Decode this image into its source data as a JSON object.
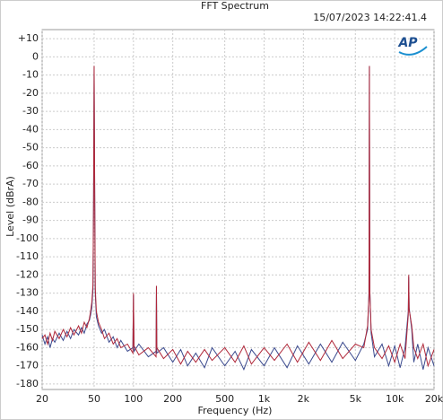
{
  "chart_data": {
    "type": "line",
    "title": "FFT Spectrum",
    "timestamp": "15/07/2023 14:22:41.4",
    "logo": "AP",
    "x_label": "Frequency (Hz)",
    "y_label": "Level (dBrA)",
    "log_x": true,
    "grid": true,
    "xlim": [
      20,
      20000
    ],
    "ylim": [
      -183,
      15
    ],
    "xticks": [
      20,
      50,
      100,
      200,
      500,
      {
        "value": 1000,
        "label": "1k"
      },
      {
        "value": 2000,
        "label": "2k"
      },
      {
        "value": 5000,
        "label": "5k"
      },
      {
        "value": 10000,
        "label": "10k"
      },
      {
        "value": 20000,
        "label": "20k"
      }
    ],
    "yticks": [
      {
        "value": 10,
        "label": "+10"
      },
      0,
      -10,
      -20,
      -30,
      -40,
      -50,
      -60,
      -70,
      -80,
      -90,
      -100,
      -110,
      -120,
      -130,
      -140,
      -150,
      -160,
      -170,
      -180
    ],
    "x": [
      20,
      21,
      22,
      23,
      24,
      25,
      27,
      29,
      31,
      33,
      35,
      38,
      40,
      42,
      44,
      46,
      47,
      48,
      49,
      49.5,
      50,
      50.5,
      51,
      52,
      54,
      57,
      60,
      65,
      70,
      75,
      80,
      90,
      99,
      100,
      101,
      110,
      130,
      149,
      150,
      151,
      170,
      200,
      230,
      260,
      300,
      350,
      400,
      500,
      600,
      700,
      800,
      1000,
      1200,
      1500,
      1800,
      2200,
      2700,
      3300,
      4000,
      5000,
      5800,
      6200,
      6350,
      6400,
      6450,
      6600,
      7000,
      8000,
      9000,
      10000,
      11000,
      12000,
      12700,
      12800,
      12900,
      13500,
      14000,
      15000,
      16500,
      18000,
      20000
    ],
    "series": [
      {
        "color": "#3b4a8e",
        "values": [
          -153,
          -158,
          -154,
          -160,
          -155,
          -157,
          -152,
          -156,
          -151,
          -155,
          -150,
          -153,
          -149,
          -152,
          -147,
          -145,
          -142,
          -138,
          -128,
          -80,
          -5,
          -75,
          -130,
          -143,
          -148,
          -152,
          -150,
          -157,
          -154,
          -160,
          -156,
          -162,
          -160,
          -131,
          -162,
          -158,
          -165,
          -162,
          -126,
          -163,
          -160,
          -168,
          -161,
          -170,
          -163,
          -171,
          -160,
          -170,
          -162,
          -172,
          -161,
          -170,
          -160,
          -171,
          -159,
          -169,
          -158,
          -168,
          -157,
          -167,
          -158,
          -150,
          -130,
          -5,
          -128,
          -152,
          -165,
          -158,
          -170,
          -159,
          -171,
          -160,
          -140,
          -121,
          -138,
          -150,
          -168,
          -158,
          -172,
          -160,
          -170
        ]
      },
      {
        "color": "#b0283a",
        "values": [
          -155,
          -153,
          -158,
          -152,
          -156,
          -151,
          -155,
          -150,
          -154,
          -149,
          -153,
          -148,
          -152,
          -146,
          -149,
          -144,
          -140,
          -135,
          -125,
          -78,
          -5,
          -72,
          -127,
          -140,
          -146,
          -150,
          -155,
          -152,
          -158,
          -155,
          -160,
          -158,
          -163,
          -130,
          -159,
          -164,
          -160,
          -165,
          -126,
          -160,
          -166,
          -161,
          -169,
          -162,
          -168,
          -161,
          -167,
          -160,
          -168,
          -159,
          -169,
          -160,
          -167,
          -158,
          -168,
          -157,
          -167,
          -156,
          -166,
          -158,
          -160,
          -148,
          -132,
          -5,
          -129,
          -150,
          -160,
          -166,
          -159,
          -168,
          -158,
          -166,
          -142,
          -120,
          -139,
          -148,
          -160,
          -166,
          -158,
          -170,
          -161
        ]
      }
    ]
  }
}
